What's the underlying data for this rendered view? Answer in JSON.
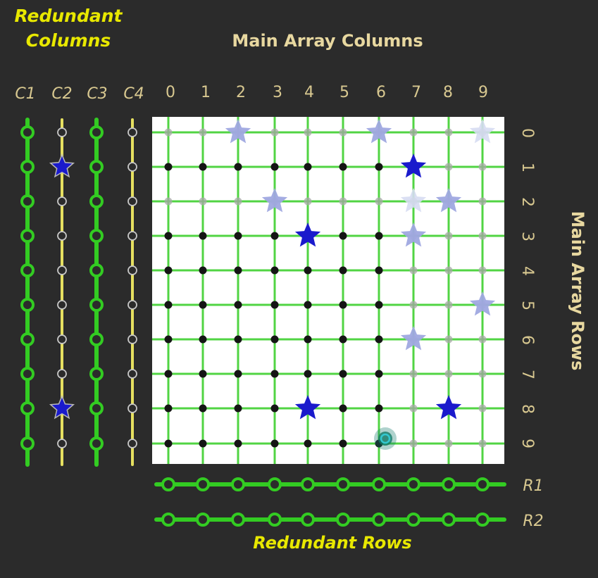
{
  "titles": {
    "redundant_columns_line1": "Redundant",
    "redundant_columns_line2": "Columns",
    "main_array_columns": "Main Array Columns",
    "main_array_rows": "Main Array Rows",
    "redundant_rows": "Redundant Rows"
  },
  "redundant_column_labels": [
    "C1",
    "C2",
    "C3",
    "C4"
  ],
  "redundant_row_labels": [
    "R1",
    "R2"
  ],
  "main_column_labels": [
    "0",
    "1",
    "2",
    "3",
    "4",
    "5",
    "6",
    "7",
    "8",
    "9"
  ],
  "main_row_labels": [
    "0",
    "1",
    "2",
    "3",
    "4",
    "5",
    "6",
    "7",
    "8",
    "9"
  ],
  "redundant_columns_state": [
    {
      "id": "C1",
      "used": true
    },
    {
      "id": "C2",
      "used": false
    },
    {
      "id": "C3",
      "used": true
    },
    {
      "id": "C4",
      "used": false
    }
  ],
  "redundant_rows_state": [
    {
      "id": "R1",
      "used": true
    },
    {
      "id": "R2",
      "used": true
    }
  ],
  "active_rows": [
    1,
    3,
    4,
    5,
    6,
    7,
    8,
    9
  ],
  "active_columns": [
    0,
    1,
    2,
    3,
    4,
    5,
    6
  ],
  "faults_main": [
    {
      "row": 0,
      "col": 2,
      "strength": "faded"
    },
    {
      "row": 0,
      "col": 6,
      "strength": "faded"
    },
    {
      "row": 0,
      "col": 9,
      "strength": "faint"
    },
    {
      "row": 1,
      "col": 7,
      "strength": "solid"
    },
    {
      "row": 2,
      "col": 3,
      "strength": "faded"
    },
    {
      "row": 2,
      "col": 7,
      "strength": "faint"
    },
    {
      "row": 2,
      "col": 8,
      "strength": "faded"
    },
    {
      "row": 3,
      "col": 4,
      "strength": "solid"
    },
    {
      "row": 3,
      "col": 7,
      "strength": "faded"
    },
    {
      "row": 5,
      "col": 9,
      "strength": "faded"
    },
    {
      "row": 6,
      "col": 7,
      "strength": "faded"
    },
    {
      "row": 8,
      "col": 4,
      "strength": "solid"
    },
    {
      "row": 8,
      "col": 8,
      "strength": "solid"
    }
  ],
  "faults_redundant_columns": [
    {
      "col": "C2",
      "row": 1
    },
    {
      "col": "C2",
      "row": 8
    }
  ],
  "cursor": {
    "row": 9,
    "col": 6
  },
  "colors": {
    "background": "#2b2b2b",
    "grid_used": "#33cc22",
    "grid_unused": "#e6e060",
    "star_solid": "#1a1acc",
    "star_faded": "#9fa8e0",
    "cursor": "#33c8d0",
    "title_yellow": "#e8e800",
    "title_cream": "#e8d8a0"
  }
}
